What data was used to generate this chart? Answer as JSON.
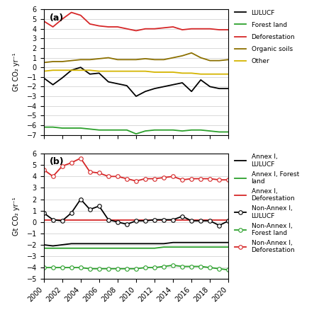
{
  "years": [
    2000,
    2001,
    2002,
    2003,
    2004,
    2005,
    2006,
    2007,
    2008,
    2009,
    2010,
    2011,
    2012,
    2013,
    2014,
    2015,
    2016,
    2017,
    2018,
    2019,
    2020
  ],
  "a_LULUCF": [
    -1.1,
    -1.8,
    -1.1,
    -0.3,
    0.0,
    -0.7,
    -0.6,
    -1.5,
    -1.7,
    -1.9,
    -3.0,
    -2.5,
    -2.2,
    -2.0,
    -1.8,
    -1.6,
    -2.5,
    -1.3,
    -2.0,
    -2.2,
    -2.2
  ],
  "a_ForestLand": [
    -6.2,
    -6.2,
    -6.3,
    -6.3,
    -6.3,
    -6.4,
    -6.5,
    -6.5,
    -6.5,
    -6.5,
    -6.9,
    -6.6,
    -6.5,
    -6.5,
    -6.5,
    -6.6,
    -6.5,
    -6.5,
    -6.6,
    -6.7,
    -6.7
  ],
  "a_Deforestation": [
    4.8,
    4.2,
    5.0,
    5.7,
    5.4,
    4.5,
    4.3,
    4.2,
    4.2,
    4.0,
    3.8,
    4.0,
    4.0,
    4.1,
    4.2,
    3.9,
    4.0,
    4.0,
    4.0,
    3.9,
    3.9
  ],
  "a_OrganicSoils": [
    0.5,
    0.6,
    0.6,
    0.7,
    0.8,
    0.8,
    0.9,
    1.0,
    0.8,
    0.8,
    0.8,
    0.9,
    0.8,
    0.8,
    1.0,
    1.2,
    1.5,
    1.0,
    0.7,
    0.7,
    0.8
  ],
  "a_Other": [
    -0.4,
    -0.3,
    -0.3,
    -0.3,
    -0.3,
    -0.3,
    -0.4,
    -0.4,
    -0.4,
    -0.4,
    -0.4,
    -0.4,
    -0.5,
    -0.5,
    -0.5,
    -0.6,
    -0.6,
    -0.7,
    -0.7,
    -0.7,
    -0.7
  ],
  "b_AnnexI_LULUCF": [
    -2.0,
    -2.1,
    -2.0,
    -1.9,
    -1.9,
    -1.9,
    -1.9,
    -1.9,
    -1.9,
    -1.9,
    -1.9,
    -1.9,
    -1.9,
    -1.9,
    -1.8,
    -1.8,
    -1.8,
    -1.8,
    -1.8,
    -1.8,
    -1.8
  ],
  "b_AnnexI_ForestLand": [
    -2.3,
    -2.3,
    -2.3,
    -2.3,
    -2.3,
    -2.3,
    -2.3,
    -2.3,
    -2.3,
    -2.3,
    -2.3,
    -2.3,
    -2.3,
    -2.2,
    -2.2,
    -2.2,
    -2.2,
    -2.2,
    -2.2,
    -2.2,
    -2.2
  ],
  "b_AnnexI_Deforestation": [
    0.2,
    0.2,
    0.2,
    0.2,
    0.2,
    0.2,
    0.2,
    0.2,
    0.2,
    0.2,
    0.2,
    0.2,
    0.2,
    0.2,
    0.2,
    0.2,
    0.2,
    0.2,
    0.2,
    0.2,
    0.2
  ],
  "b_NonAnnexI_LULUCF": [
    0.8,
    0.2,
    0.1,
    0.8,
    2.0,
    1.1,
    1.4,
    0.2,
    0.0,
    -0.2,
    0.1,
    0.1,
    0.2,
    0.2,
    0.2,
    0.5,
    0.1,
    0.1,
    0.1,
    -0.3,
    0.1
  ],
  "b_NonAnnexI_ForestLand": [
    -4.0,
    -4.0,
    -4.0,
    -4.0,
    -4.0,
    -4.1,
    -4.1,
    -4.1,
    -4.1,
    -4.1,
    -4.1,
    -4.0,
    -4.0,
    -3.9,
    -3.8,
    -3.9,
    -3.9,
    -3.9,
    -4.0,
    -4.1,
    -4.2
  ],
  "b_NonAnnexI_Deforestation": [
    4.6,
    4.0,
    4.9,
    5.2,
    5.6,
    4.4,
    4.3,
    4.0,
    4.0,
    3.8,
    3.6,
    3.8,
    3.8,
    3.9,
    4.0,
    3.7,
    3.8,
    3.8,
    3.8,
    3.7,
    3.7
  ],
  "color_black": "#000000",
  "color_green": "#2ca02c",
  "color_red": "#d62728",
  "color_olive": "#8c7000",
  "color_gold": "#d4b400",
  "ylim_a": [
    -7,
    6
  ],
  "ylim_b": [
    -5,
    6
  ],
  "yticks_a": [
    -7,
    -6,
    -5,
    -4,
    -3,
    -2,
    -1,
    0,
    1,
    2,
    3,
    4,
    5,
    6
  ],
  "yticks_b": [
    -5,
    -4,
    -3,
    -2,
    -1,
    0,
    1,
    2,
    3,
    4,
    5,
    6
  ],
  "ylabel": "Gt CO₂ yr⁻¹",
  "legend_a": [
    "LULUCF",
    "Forest land",
    "Deforestation",
    "Organic soils",
    "Other"
  ],
  "legend_b_items": [
    "Annex I,\nLULUCF",
    "Annex I, Forest\nland",
    "Annex I,\nDeforestation",
    "Non-Annex I,\nLULUCF",
    "Non-Annex I,\nForest land",
    "Non-Annex I,\nDeforestation"
  ]
}
